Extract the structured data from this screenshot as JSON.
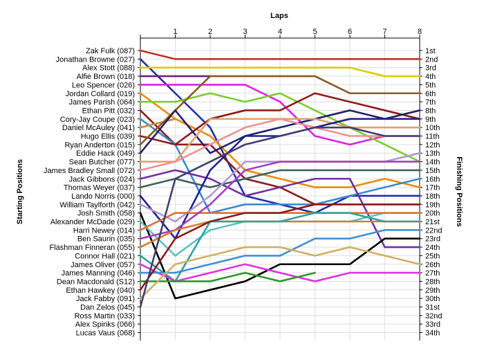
{
  "chart_data": {
    "type": "line",
    "title": "Laps",
    "xlabel": "Laps",
    "ylabel_left": "Starting Positions",
    "ylabel_right": "Finishing Positions",
    "x": [
      0,
      1,
      2,
      3,
      4,
      5,
      6,
      7,
      8
    ],
    "x_tick_labels": [
      "1",
      "2",
      "3",
      "4",
      "5",
      "6",
      "7",
      "8"
    ],
    "grid": true,
    "drivers": [
      "Zak Fulk (087)",
      "Jonathan Browne (027)",
      "Alex Stott (088)",
      "Alfie Brown (018)",
      "Leo Spencer (026)",
      "Jordan Collard (019)",
      "James Parish (064)",
      "Ethan Pitt (032)",
      "Cory-Jay Coupe (023)",
      "Daniel McAuley (041)",
      "Hugo Ellis (039)",
      "Ryan Anderton (015)",
      "Eddie Hack (049)",
      "Sean Butcher (077)",
      "James Bradley Small (072)",
      "Jack Gibbons (024)",
      "Thomas Weyer (037)",
      "Lando Norris (000)",
      "William Taylforth (042)",
      "Josh Smith (058)",
      "Alexander McDade (029)",
      "Harri Newey (014)",
      "Ben Saurin (035)",
      "Flashman Finneran (055)",
      "Connor Hall (021)",
      "James Oliver (057)",
      "James Manning (046)",
      "Dean Macdonald (S12)",
      "Ethan Hawkey (040)",
      "Jack Fabby (091)",
      "Dan Zelos (045)",
      "Ross Martin (033)",
      "Alex Spinks (066)",
      "Lucas Vaus (068)"
    ],
    "finishing_labels": [
      "1st",
      "2nd",
      "3rd",
      "4th",
      "5th",
      "6th",
      "7th",
      "8th",
      "9th",
      "10th",
      "11th",
      "12th",
      "13th",
      "14th",
      "15th",
      "16th",
      "17th",
      "18th",
      "19th",
      "20th",
      "21st",
      "22nd",
      "23rd",
      "24th",
      "25th",
      "26th",
      "27th",
      "28th",
      "29th",
      "30th",
      "31st",
      "32nd",
      "33rd",
      "34th"
    ],
    "series": [
      {
        "name": "Zak Fulk (087)",
        "color": "#c0302a",
        "positions": [
          1,
          2,
          2,
          2,
          2,
          2,
          2,
          2,
          2
        ]
      },
      {
        "name": "Jonathan Browne (027)",
        "color": "#1f2fb0",
        "positions": [
          2,
          6,
          10,
          18,
          19,
          20,
          18,
          18,
          18
        ]
      },
      {
        "name": "Alex Stott (088)",
        "color": "#d8cf00",
        "positions": [
          3,
          3,
          3,
          3,
          3,
          3,
          3,
          4,
          4
        ]
      },
      {
        "name": "Alfie Brown (018)",
        "color": "#6a2080",
        "positions": [
          4,
          4,
          4
        ]
      },
      {
        "name": "Leo Spencer (026)",
        "color": "#e020e0",
        "positions": [
          5,
          5,
          5,
          5,
          7,
          11,
          12,
          11,
          11
        ]
      },
      {
        "name": "Jordan Collard (019)",
        "color": "#f08a00",
        "positions": [
          6,
          9,
          11,
          15,
          16,
          17,
          17,
          16,
          17
        ]
      },
      {
        "name": "James Parish (064)",
        "color": "#7acd30",
        "positions": [
          7,
          7,
          6,
          7,
          6,
          8,
          10,
          12,
          14
        ]
      },
      {
        "name": "Ethan Pitt (032)",
        "color": "#8b1c1c",
        "positions": [
          8,
          12,
          9,
          8,
          8,
          6,
          7,
          8,
          9
        ]
      },
      {
        "name": "Cory-Jay Coupe (023)",
        "color": "#3a8ad0",
        "positions": [
          9,
          12,
          20,
          19,
          19,
          19,
          18,
          17,
          16
        ]
      },
      {
        "name": "Daniel McAuley (041)",
        "color": "#c09040",
        "positions": [
          10,
          9
        ]
      },
      {
        "name": "Hugo Ellis (039)",
        "color": "#8b1c1c",
        "positions": [
          11,
          12,
          12,
          16,
          17,
          19,
          19,
          19,
          19
        ]
      },
      {
        "name": "Ryan Anderton (015)",
        "color": "#8a5a20",
        "positions": [
          12,
          8,
          4,
          4,
          4,
          4,
          6,
          6,
          6
        ]
      },
      {
        "name": "Eddie Hack (049)",
        "color": "#22226a",
        "positions": [
          13,
          8,
          13,
          11,
          10,
          9,
          8,
          9,
          8
        ]
      },
      {
        "name": "Sean Butcher (077)",
        "color": "#e0a070",
        "positions": [
          14,
          14,
          9,
          9,
          9,
          9,
          10,
          10,
          10
        ]
      },
      {
        "name": "James Bradley Small (072)",
        "color": "#f09090",
        "positions": [
          15,
          14,
          12,
          10,
          9,
          10,
          11,
          11,
          11
        ]
      },
      {
        "name": "Jack Gibbons (024)",
        "color": "#7030a0",
        "positions": [
          16,
          15,
          16,
          18,
          17,
          16,
          16,
          24,
          24
        ]
      },
      {
        "name": "Thomas Weyer (037)",
        "color": "#406060",
        "positions": [
          17,
          16,
          17,
          16,
          15,
          15,
          15,
          15,
          15
        ]
      },
      {
        "name": "Lando Norris (000)",
        "color": "#20208a",
        "positions": [
          18,
          23,
          15,
          11,
          11,
          10,
          9,
          9,
          9
        ]
      },
      {
        "name": "William Taylforth (042)",
        "color": "#b09ad0",
        "positions": [
          19,
          21,
          18,
          14,
          14,
          14,
          14,
          14,
          13
        ]
      },
      {
        "name": "Josh Smith (058)",
        "color": "#000000",
        "positions": [
          20,
          30,
          29,
          28,
          26,
          26,
          26,
          23,
          23
        ]
      },
      {
        "name": "Alexander McDade (029)",
        "color": "#60c0c0",
        "positions": [
          21,
          25,
          22,
          21,
          21,
          21,
          21,
          20,
          20
        ]
      },
      {
        "name": "Harri Newey (014)",
        "color": "#e07030",
        "positions": [
          22,
          20,
          20,
          20,
          20,
          20,
          20,
          20,
          20
        ]
      },
      {
        "name": "Ben Saurin (035)",
        "color": "#a040c0",
        "positions": [
          23,
          22,
          19,
          15,
          14,
          14,
          14,
          14,
          14
        ]
      },
      {
        "name": "Flashman Finneran (055)",
        "color": "#d08030",
        "positions": [
          24,
          22,
          21,
          21,
          21,
          21,
          21,
          21,
          21
        ]
      },
      {
        "name": "Connor Hall (021)",
        "color": "#30a0a0",
        "positions": [
          25,
          28,
          21,
          21,
          21,
          20,
          20,
          21,
          21
        ]
      },
      {
        "name": "James Oliver (057)",
        "color": "#e030e0",
        "positions": [
          26,
          28,
          27,
          26,
          27,
          28,
          27,
          27,
          27
        ]
      },
      {
        "name": "James Manning (046)",
        "color": "#4090d0",
        "positions": [
          27,
          27,
          26,
          25,
          25,
          23,
          23,
          22,
          22
        ]
      },
      {
        "name": "Dean Macdonald (S12)",
        "color": "#2a9a2a",
        "positions": [
          28,
          28,
          28,
          27,
          28,
          27
        ]
      },
      {
        "name": "Ethan Hawkey (040)",
        "color": "#8a1a1a",
        "positions": [
          29,
          23,
          21,
          20,
          20,
          19,
          19,
          19,
          19
        ]
      },
      {
        "name": "Jack Fabby (091)",
        "color": "#d0b060",
        "positions": [
          30,
          26,
          25,
          24,
          24,
          25,
          24,
          25,
          26
        ]
      },
      {
        "name": "Dan Zelos (045)",
        "color": "#404070",
        "positions": [
          31,
          16,
          14,
          12,
          11,
          10,
          10,
          11,
          11
        ]
      }
    ]
  }
}
